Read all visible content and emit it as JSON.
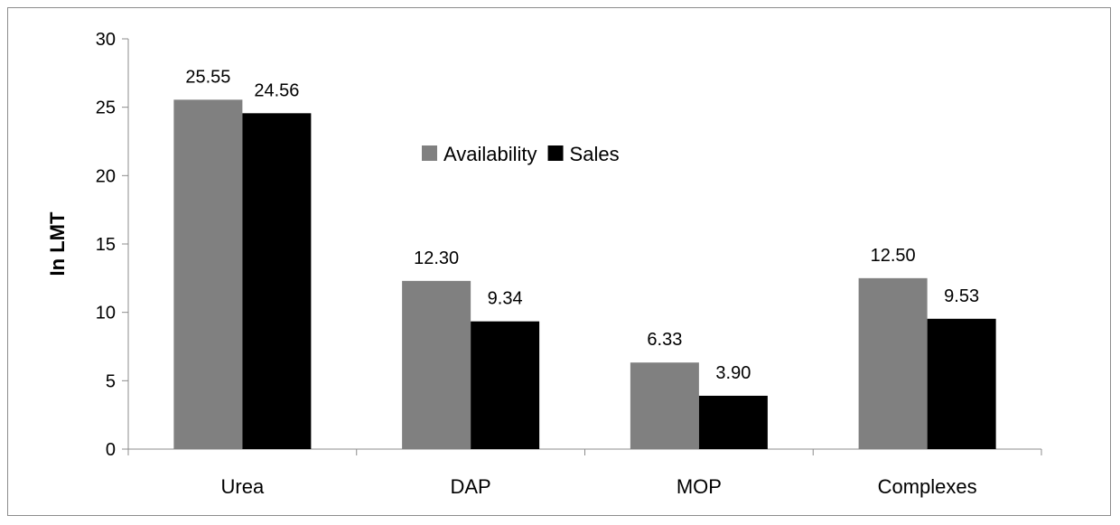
{
  "chart_data": {
    "type": "bar",
    "categories": [
      "Urea",
      "DAP",
      "MOP",
      "Complexes"
    ],
    "series": [
      {
        "name": "Availability",
        "values": [
          25.55,
          12.3,
          6.33,
          12.5
        ],
        "labels": [
          "25.55",
          "12.30",
          "6.33",
          "12.50"
        ],
        "color": "#808080"
      },
      {
        "name": "Sales",
        "values": [
          24.56,
          9.34,
          3.9,
          9.53
        ],
        "labels": [
          "24.56",
          "9.34",
          "3.90",
          "9.53"
        ],
        "color": "#000000"
      }
    ],
    "ylabel": "In LMT",
    "xlabel": "",
    "ylim": [
      0,
      30
    ],
    "yticks": [
      0,
      5,
      10,
      15,
      20,
      25,
      30
    ],
    "ytick_labels": [
      "0",
      "5",
      "10",
      "15",
      "20",
      "25",
      "30"
    ],
    "grid": false,
    "legend_position": "top-center"
  }
}
